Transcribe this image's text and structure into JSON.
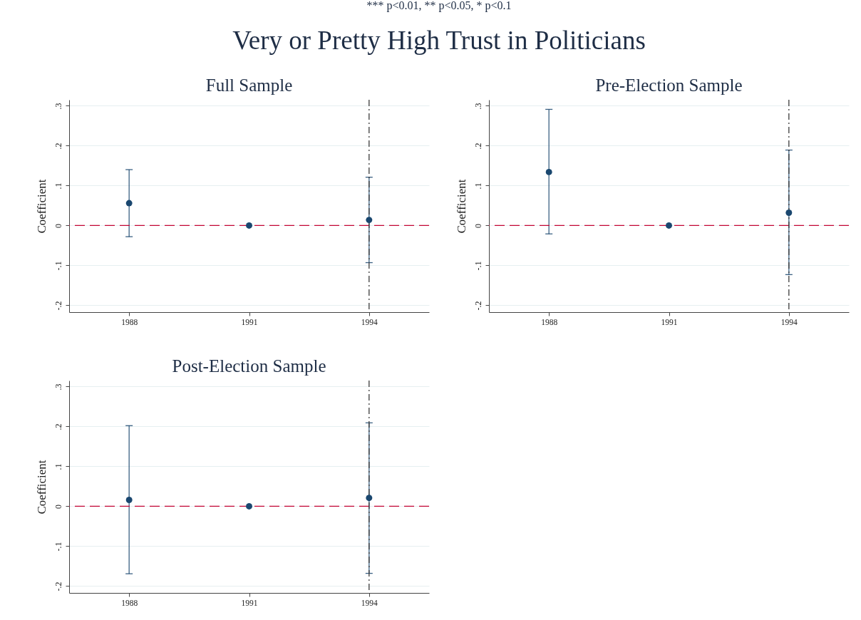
{
  "chart_data": [
    {
      "type": "scatter",
      "title": "Full Sample",
      "ylabel": "Coefficient",
      "annotations": [
        "*** p<0.01, ** p<0.05, * p<0.1",
        "Very or Pretty High Trust in Politicians"
      ],
      "x": [
        1988,
        1991,
        1994
      ],
      "series": [
        {
          "color": "#1a476f",
          "values": [
            0.056,
            0,
            0.014
          ],
          "errors": [
            [
              -0.028,
              0.14
            ],
            null,
            [
              -0.093,
              0.121
            ]
          ]
        }
      ],
      "xlim": [
        1986.5,
        1995.5
      ],
      "xticks": [
        1988,
        1991,
        1994
      ],
      "ylim": [
        -0.217,
        0.315
      ],
      "yticks": [
        {
          "value": -0.2,
          "label": "-.2"
        },
        {
          "value": -0.1,
          "label": "-.1"
        },
        0,
        {
          "value": 0.1,
          "label": ".1"
        },
        {
          "value": 0.2,
          "label": ".2"
        },
        {
          "value": 0.3,
          "label": ".3"
        }
      ],
      "ref_lines": [
        {
          "axis": "y",
          "value": 0,
          "color": "#c10534",
          "line_style": "dashed"
        },
        {
          "axis": "x",
          "value": 1994,
          "color": "#3a3a3a",
          "line_style": "dashdot"
        }
      ],
      "grid": "y",
      "marker": "circle"
    },
    {
      "type": "scatter",
      "title": "Pre-Election Sample",
      "ylabel": "Coefficient",
      "x": [
        1988,
        1991,
        1994
      ],
      "series": [
        {
          "color": "#1a476f",
          "values": [
            0.134,
            0,
            0.032
          ],
          "errors": [
            [
              -0.021,
              0.291
            ],
            null,
            [
              -0.123,
              0.189
            ]
          ]
        }
      ],
      "xlim": [
        1986.5,
        1995.5
      ],
      "xticks": [
        1988,
        1991,
        1994
      ],
      "ylim": [
        -0.217,
        0.315
      ],
      "yticks": [
        {
          "value": -0.2,
          "label": "-.2"
        },
        {
          "value": -0.1,
          "label": "-.1"
        },
        0,
        {
          "value": 0.1,
          "label": ".1"
        },
        {
          "value": 0.2,
          "label": ".2"
        },
        {
          "value": 0.3,
          "label": ".3"
        }
      ],
      "ref_lines": [
        {
          "axis": "y",
          "value": 0,
          "color": "#c10534",
          "line_style": "dashed"
        },
        {
          "axis": "x",
          "value": 1994,
          "color": "#3a3a3a",
          "line_style": "dashdot"
        }
      ],
      "grid": "y",
      "marker": "circle"
    },
    {
      "type": "scatter",
      "title": "Post-Election Sample",
      "ylabel": "Coefficient",
      "x": [
        1988,
        1991,
        1994
      ],
      "series": [
        {
          "color": "#1a476f",
          "values": [
            0.016,
            0,
            0.021
          ],
          "errors": [
            [
              -0.169,
              0.202
            ],
            null,
            [
              -0.168,
              0.209
            ]
          ]
        }
      ],
      "xlim": [
        1986.5,
        1995.5
      ],
      "xticks": [
        1988,
        1991,
        1994
      ],
      "ylim": [
        -0.217,
        0.315
      ],
      "yticks": [
        {
          "value": -0.2,
          "label": "-.2"
        },
        {
          "value": -0.1,
          "label": "-.1"
        },
        0,
        {
          "value": 0.1,
          "label": ".1"
        },
        {
          "value": 0.2,
          "label": ".2"
        },
        {
          "value": 0.3,
          "label": ".3"
        }
      ],
      "ref_lines": [
        {
          "axis": "y",
          "value": 0,
          "color": "#c10534",
          "line_style": "dashed"
        },
        {
          "axis": "x",
          "value": 1994,
          "color": "#3a3a3a",
          "line_style": "dashdot"
        }
      ],
      "grid": "y",
      "marker": "circle"
    }
  ]
}
